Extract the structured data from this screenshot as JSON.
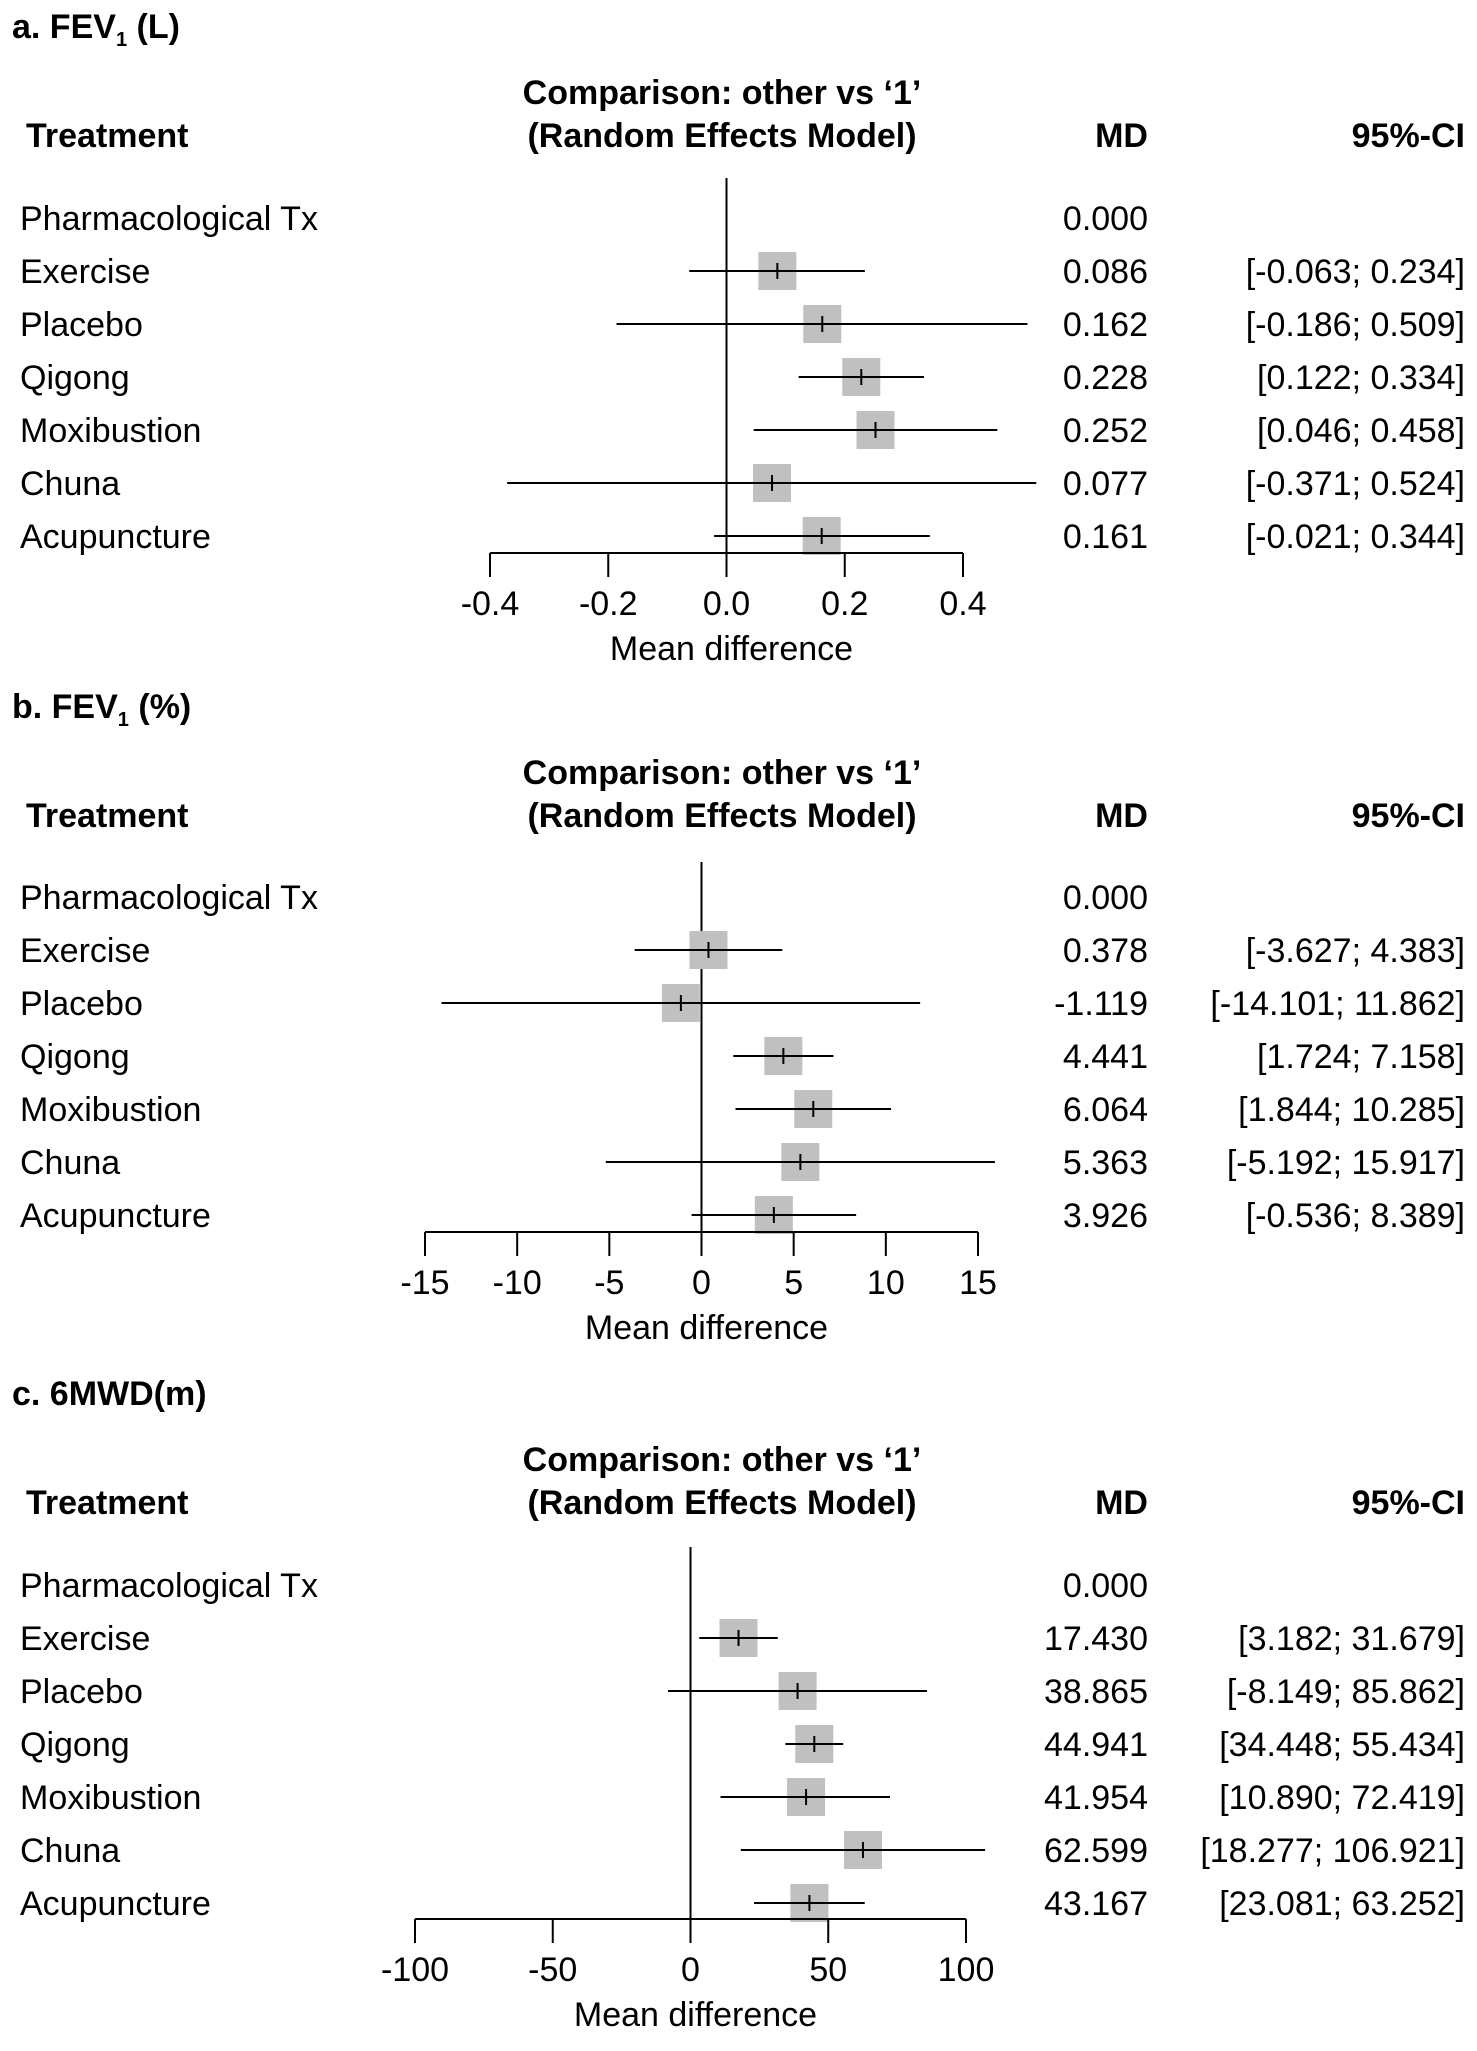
{
  "chart_data": [
    {
      "type": "forest",
      "panel_title": "a. FEV",
      "panel_sub": "1",
      "panel_unit": " (L)",
      "header": {
        "treatment": "Treatment",
        "comparison_line1": "Comparison: other vs ‘1’",
        "comparison_line2": "(Random Effects Model)",
        "md": "MD",
        "ci": "95%-CI"
      },
      "xlabel": "Mean difference",
      "xlim": [
        -0.4,
        0.4
      ],
      "ticks": [
        -0.4,
        -0.2,
        0.0,
        0.2,
        0.4
      ],
      "tick_labels": [
        "-0.4",
        "-0.2",
        "0.0",
        "0.2",
        "0.4"
      ],
      "rows": [
        {
          "treatment": "Pharmacological Tx",
          "md": 0.0,
          "md_text": "0.000",
          "lo": null,
          "hi": null,
          "ci_text": ""
        },
        {
          "treatment": "Exercise",
          "md": 0.086,
          "md_text": "0.086",
          "lo": -0.063,
          "hi": 0.234,
          "ci_text": "[-0.063; 0.234]"
        },
        {
          "treatment": "Placebo",
          "md": 0.162,
          "md_text": "0.162",
          "lo": -0.186,
          "hi": 0.509,
          "ci_text": "[-0.186; 0.509]"
        },
        {
          "treatment": "Qigong",
          "md": 0.228,
          "md_text": "0.228",
          "lo": 0.122,
          "hi": 0.334,
          "ci_text": "[0.122; 0.334]"
        },
        {
          "treatment": "Moxibustion",
          "md": 0.252,
          "md_text": "0.252",
          "lo": 0.046,
          "hi": 0.458,
          "ci_text": "[0.046; 0.458]"
        },
        {
          "treatment": "Chuna",
          "md": 0.077,
          "md_text": "0.077",
          "lo": -0.371,
          "hi": 0.524,
          "ci_text": "[-0.371; 0.524]"
        },
        {
          "treatment": "Acupuncture",
          "md": 0.161,
          "md_text": "0.161",
          "lo": -0.021,
          "hi": 0.344,
          "ci_text": "[-0.021; 0.344]"
        }
      ]
    },
    {
      "type": "forest",
      "panel_title": "b. FEV",
      "panel_sub": "1",
      "panel_unit": " (%)",
      "header": {
        "treatment": "Treatment",
        "comparison_line1": "Comparison: other vs ‘1’",
        "comparison_line2": "(Random Effects Model)",
        "md": "MD",
        "ci": "95%-CI"
      },
      "xlabel": "Mean difference",
      "xlim": [
        -15,
        15
      ],
      "ticks": [
        -15,
        -10,
        -5,
        0,
        5,
        10,
        15
      ],
      "tick_labels": [
        "-15",
        "-10",
        "-5",
        "0",
        "5",
        "10",
        "15"
      ],
      "rows": [
        {
          "treatment": "Pharmacological Tx",
          "md": 0.0,
          "md_text": "0.000",
          "lo": null,
          "hi": null,
          "ci_text": ""
        },
        {
          "treatment": "Exercise",
          "md": 0.378,
          "md_text": "0.378",
          "lo": -3.627,
          "hi": 4.383,
          "ci_text": "[-3.627; 4.383]"
        },
        {
          "treatment": "Placebo",
          "md": -1.119,
          "md_text": "-1.119",
          "lo": -14.101,
          "hi": 11.862,
          "ci_text": "[-14.101; 11.862]"
        },
        {
          "treatment": "Qigong",
          "md": 4.441,
          "md_text": "4.441",
          "lo": 1.724,
          "hi": 7.158,
          "ci_text": "[1.724; 7.158]"
        },
        {
          "treatment": "Moxibustion",
          "md": 6.064,
          "md_text": "6.064",
          "lo": 1.844,
          "hi": 10.285,
          "ci_text": "[1.844; 10.285]"
        },
        {
          "treatment": "Chuna",
          "md": 5.363,
          "md_text": "5.363",
          "lo": -5.192,
          "hi": 15.917,
          "ci_text": "[-5.192; 15.917]"
        },
        {
          "treatment": "Acupuncture",
          "md": 3.926,
          "md_text": "3.926",
          "lo": -0.536,
          "hi": 8.389,
          "ci_text": "[-0.536; 8.389]"
        }
      ]
    },
    {
      "type": "forest",
      "panel_title": "c. 6MWD(m)",
      "panel_sub": "",
      "panel_unit": "",
      "header": {
        "treatment": "Treatment",
        "comparison_line1": "Comparison: other vs ‘1’",
        "comparison_line2": "(Random Effects Model)",
        "md": "MD",
        "ci": "95%-CI"
      },
      "xlabel": "Mean difference",
      "xlim": [
        -100,
        100
      ],
      "ticks": [
        -100,
        -50,
        0,
        50,
        100
      ],
      "tick_labels": [
        "-100",
        "-50",
        "0",
        "50",
        "100"
      ],
      "rows": [
        {
          "treatment": "Pharmacological Tx",
          "md": 0.0,
          "md_text": "0.000",
          "lo": null,
          "hi": null,
          "ci_text": ""
        },
        {
          "treatment": "Exercise",
          "md": 17.43,
          "md_text": "17.430",
          "lo": 3.182,
          "hi": 31.679,
          "ci_text": "[3.182; 31.679]"
        },
        {
          "treatment": "Placebo",
          "md": 38.865,
          "md_text": "38.865",
          "lo": -8.149,
          "hi": 85.862,
          "ci_text": "[-8.149; 85.862]"
        },
        {
          "treatment": "Qigong",
          "md": 44.941,
          "md_text": "44.941",
          "lo": 34.448,
          "hi": 55.434,
          "ci_text": "[34.448; 55.434]"
        },
        {
          "treatment": "Moxibustion",
          "md": 41.954,
          "md_text": "41.954",
          "lo": 10.89,
          "hi": 72.419,
          "ci_text": "[10.890; 72.419]"
        },
        {
          "treatment": "Chuna",
          "md": 62.599,
          "md_text": "62.599",
          "lo": 18.277,
          "hi": 106.921,
          "ci_text": "[18.277; 106.921]"
        },
        {
          "treatment": "Acupuncture",
          "md": 43.167,
          "md_text": "43.167",
          "lo": 23.081,
          "hi": 63.252,
          "ci_text": "[23.081; 63.252]"
        }
      ]
    }
  ]
}
